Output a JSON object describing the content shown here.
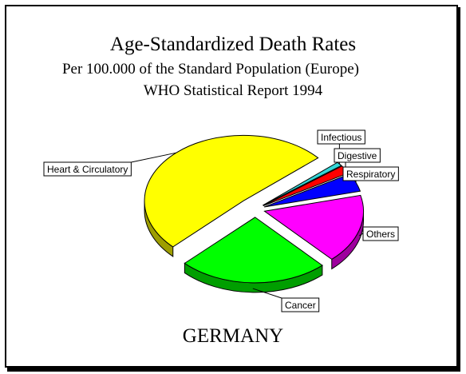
{
  "chart_data": {
    "type": "pie",
    "title": "Age-Standardized Death Rates",
    "subtitle": [
      "Per 100.000 of the Standard Population (Europe)",
      "WHO Statistical Report 1994"
    ],
    "caption": "GERMANY",
    "slices": [
      {
        "label": "Infectious",
        "value": 1,
        "color": "#33d6d6"
      },
      {
        "label": "Digestive",
        "value": 2,
        "color": "#ff0000"
      },
      {
        "label": "Respiratory",
        "value": 4.5,
        "color": "#0000ff"
      },
      {
        "label": "Others",
        "value": 17,
        "color": "#ff00ff"
      },
      {
        "label": "Cancer",
        "value": 24.5,
        "color": "#00ff00"
      },
      {
        "label": "Heart & Circulatory",
        "value": 51,
        "color": "#ffff00"
      }
    ]
  }
}
